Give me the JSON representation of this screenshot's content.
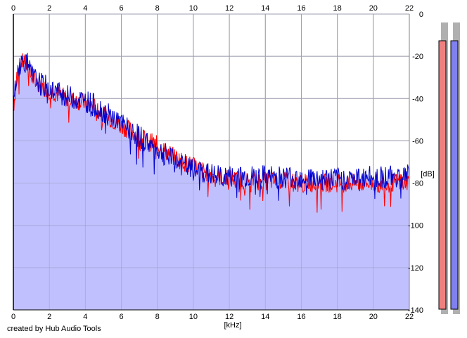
{
  "chart_data": {
    "type": "area",
    "x_unit_label": "[kHz]",
    "y_unit_label": "[dB]",
    "xlim": [
      0,
      22
    ],
    "ylim": [
      -140,
      0
    ],
    "x_ticks": [
      "0",
      "2",
      "4",
      "6",
      "8",
      "10",
      "12",
      "14",
      "16",
      "18",
      "20",
      "22"
    ],
    "y_ticks": [
      "0",
      "-20",
      "-40",
      "-60",
      "-80",
      "-100",
      "-120",
      "-140"
    ],
    "grid": true,
    "x_axis_position": "top and bottom",
    "y_axis_position": "right",
    "series": [
      {
        "color": "#ff0000",
        "x": [
          0,
          0.2,
          0.4,
          0.6,
          0.8,
          1.0,
          1.5,
          2.0,
          2.5,
          3.0,
          3.5,
          4.0,
          4.5,
          5.0,
          5.5,
          6.0,
          6.5,
          7.0,
          7.5,
          8.0,
          8.5,
          9.0,
          9.5,
          10.0,
          10.5,
          11.0,
          11.5,
          12.0,
          13.0,
          14.0,
          15.0,
          16.0,
          17.0,
          18.0,
          19.0,
          20.0,
          21.0,
          22.0
        ],
        "values": [
          -45,
          -28,
          -24,
          -22,
          -25,
          -30,
          -34,
          -36,
          -38,
          -40,
          -41,
          -42,
          -44,
          -47,
          -50,
          -53,
          -55,
          -58,
          -60,
          -62,
          -65,
          -68,
          -70,
          -72,
          -74,
          -76,
          -77,
          -78,
          -79,
          -79,
          -79,
          -80,
          -80,
          -80,
          -80,
          -80,
          -80,
          -79
        ]
      },
      {
        "color": "#0000cc",
        "x": [
          0,
          0.2,
          0.4,
          0.6,
          0.8,
          1.0,
          1.5,
          2.0,
          2.5,
          3.0,
          3.5,
          4.0,
          4.5,
          5.0,
          5.5,
          6.0,
          6.5,
          7.0,
          7.5,
          8.0,
          8.5,
          9.0,
          9.5,
          10.0,
          10.5,
          11.0,
          11.5,
          12.0,
          13.0,
          14.0,
          15.0,
          16.0,
          17.0,
          18.0,
          19.0,
          20.0,
          21.0,
          22.0
        ],
        "values": [
          -44,
          -27,
          -23,
          -22,
          -24,
          -29,
          -33,
          -35,
          -37,
          -39,
          -40,
          -41,
          -43,
          -46,
          -49,
          -52,
          -55,
          -58,
          -61,
          -64,
          -67,
          -70,
          -72,
          -74,
          -75,
          -76,
          -77,
          -77,
          -77,
          -77,
          -77,
          -77,
          -78,
          -78,
          -78,
          -77,
          -77,
          -76
        ]
      }
    ],
    "level_meters": [
      {
        "channel_color": "#f08080",
        "level_db": -2
      },
      {
        "channel_color": "#8080f0",
        "level_db": -2
      }
    ],
    "fill_color": "#c0c0ff",
    "gridline_color": "#a0a0a0"
  },
  "footer": {
    "credit": "created by Hub Audio Tools"
  }
}
